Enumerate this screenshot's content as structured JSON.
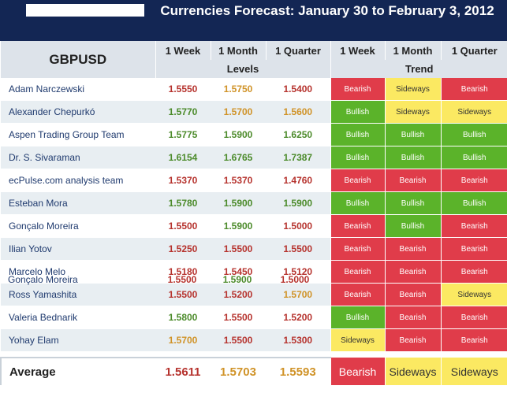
{
  "title": "Currencies Forecast: January 30 to February 3, 2012",
  "pair": "GBPUSD",
  "columns": [
    "1 Week",
    "1 Month",
    "1 Quarter",
    "1 Week",
    "1 Month",
    "1 Quarter"
  ],
  "groups": {
    "levels": "Levels",
    "trend": "Trend"
  },
  "rows": [
    {
      "name": "Adam Narczewski",
      "levels": [
        "1.5550",
        "1.5750",
        "1.5400"
      ],
      "trend": [
        "Bearish",
        "Sideways",
        "Bearish"
      ]
    },
    {
      "name": "Alexander Chepurkó",
      "levels": [
        "1.5770",
        "1.5700",
        "1.5600"
      ],
      "trend": [
        "Bullish",
        "Sideways",
        "Sideways"
      ]
    },
    {
      "name": "Aspen Trading Group Team",
      "levels": [
        "1.5775",
        "1.5900",
        "1.6250"
      ],
      "trend": [
        "Bullish",
        "Bullish",
        "Bullish"
      ]
    },
    {
      "name": "Dr. S. Sivaraman",
      "levels": [
        "1.6154",
        "1.6765",
        "1.7387"
      ],
      "trend": [
        "Bullish",
        "Bullish",
        "Bullish"
      ]
    },
    {
      "name": "ecPulse.com analysis team",
      "levels": [
        "1.5370",
        "1.5370",
        "1.4760"
      ],
      "trend": [
        "Bearish",
        "Bearish",
        "Bearish"
      ]
    },
    {
      "name": "Esteban Mora",
      "levels": [
        "1.5780",
        "1.5900",
        "1.5900"
      ],
      "trend": [
        "Bullish",
        "Bullish",
        "Bullish"
      ]
    },
    {
      "name": "Gonçalo Moreira",
      "levels": [
        "1.5500",
        "1.5900",
        "1.5000"
      ],
      "trend": [
        "Bearish",
        "Bullish",
        "Bearish"
      ]
    },
    {
      "name": "Ilian Yotov",
      "levels": [
        "1.5250",
        "1.5500",
        "1.5500"
      ],
      "trend": [
        "Bearish",
        "Bearish",
        "Bearish"
      ]
    },
    {
      "name": "Marcelo Melo",
      "levels": [
        "1.5180",
        "1.5450",
        "1.5120"
      ],
      "trend": [
        "Bearish",
        "Bearish",
        "Bearish"
      ]
    },
    {
      "name": "Ross Yamashita",
      "levels": [
        "1.5500",
        "1.5200",
        "1.5700"
      ],
      "trend": [
        "Bearish",
        "Bearish",
        "Sideways"
      ]
    },
    {
      "name": "Valeria Bednarik",
      "levels": [
        "1.5800",
        "1.5500",
        "1.5200"
      ],
      "trend": [
        "Bullish",
        "Bearish",
        "Bearish"
      ]
    },
    {
      "name": "Yohay Elam",
      "levels": [
        "1.5700",
        "1.5500",
        "1.5300"
      ],
      "trend": [
        "Sideways",
        "Bearish",
        "Bearish"
      ]
    }
  ],
  "overlap_row": {
    "name": "Gonçalo Moreira",
    "levels": [
      "1.5500",
      "1.5900",
      "1.5000"
    ]
  },
  "average": {
    "label": "Average",
    "levels": [
      "1.5611",
      "1.5703",
      "1.5593"
    ],
    "trend": [
      "Bearish",
      "Sideways",
      "Sideways"
    ]
  },
  "colors": {
    "header_bg": "#132654",
    "bearish": "#e03c4a",
    "bullish": "#5bb32a",
    "sideways": "#fbe962"
  }
}
